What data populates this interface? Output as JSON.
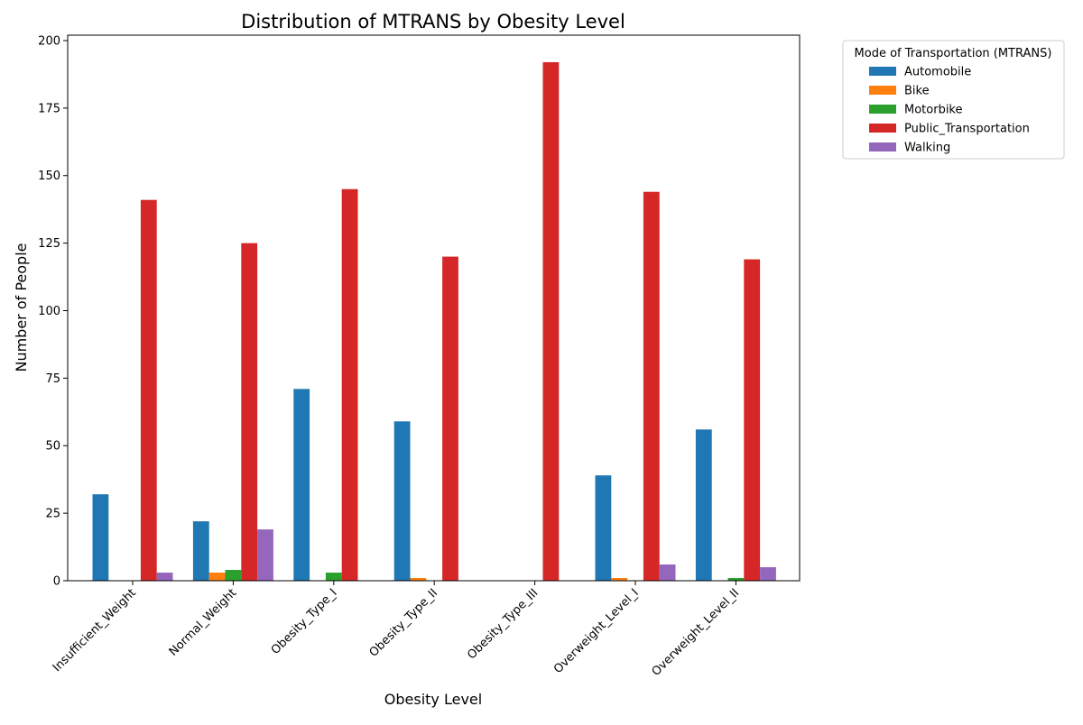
{
  "chart_data": {
    "type": "bar",
    "title": "Distribution of MTRANS by Obesity Level",
    "xlabel": "Obesity Level",
    "ylabel": "Number of People",
    "categories": [
      "Insufficient_Weight",
      "Normal_Weight",
      "Obesity_Type_I",
      "Obesity_Type_II",
      "Obesity_Type_III",
      "Overweight_Level_I",
      "Overweight_Level_II"
    ],
    "ylim": [
      0,
      202
    ],
    "yticks": [
      0,
      25,
      50,
      75,
      100,
      125,
      150,
      175,
      200
    ],
    "grid": false,
    "legend": {
      "title": "Mode of Transportation (MTRANS)",
      "placement": "outside-upper-right"
    },
    "series": [
      {
        "name": "Automobile",
        "color": "#1f77b4",
        "values": [
          32,
          22,
          71,
          59,
          0,
          39,
          56
        ]
      },
      {
        "name": "Bike",
        "color": "#ff7f0e",
        "values": [
          0,
          3,
          0,
          1,
          0,
          1,
          0
        ]
      },
      {
        "name": "Motorbike",
        "color": "#2ca02c",
        "values": [
          0,
          4,
          3,
          0,
          0,
          0,
          1
        ]
      },
      {
        "name": "Public_Transportation",
        "color": "#d62728",
        "values": [
          141,
          125,
          145,
          120,
          192,
          144,
          119
        ]
      },
      {
        "name": "Walking",
        "color": "#9467bd",
        "values": [
          3,
          19,
          0,
          0,
          0,
          6,
          5
        ]
      }
    ]
  }
}
